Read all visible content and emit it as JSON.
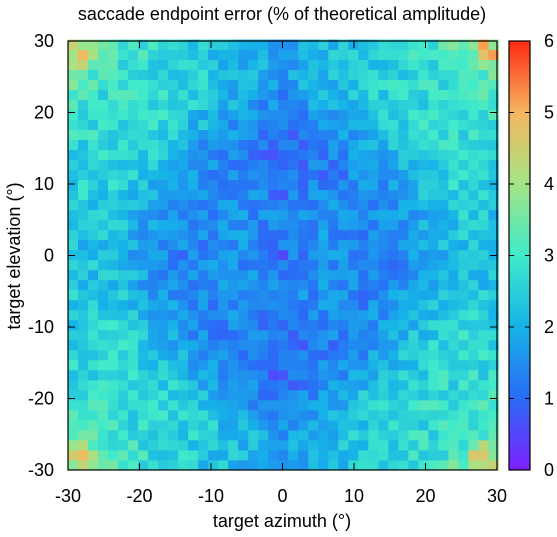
{
  "chart_data": {
    "type": "heatmap",
    "title": "saccade endpoint error (% of theoretical amplitude)",
    "xlabel": "target azimuth (°)",
    "ylabel": "target elevation (°)",
    "xlim": [
      -30,
      30
    ],
    "ylim": [
      -30,
      30
    ],
    "xticks": [
      "-30",
      "-20",
      "-10",
      "0",
      "10",
      "20",
      "30"
    ],
    "yticks": [
      "-30",
      "-20",
      "-10",
      "0",
      "10",
      "20",
      "30"
    ],
    "xtick_values": [
      -30,
      -20,
      -10,
      0,
      10,
      20,
      30
    ],
    "ytick_values": [
      -30,
      -20,
      -10,
      0,
      10,
      20,
      30
    ],
    "grid_resolution_deg": 1.4,
    "color_range": [
      0,
      6
    ],
    "colorbar_ticks": [
      "0",
      "1",
      "2",
      "3",
      "4",
      "5",
      "6"
    ],
    "colorbar_tick_values": [
      0,
      1,
      2,
      3,
      4,
      5,
      6
    ],
    "colormap_stops": [
      "#7f1fff",
      "#2a6cf6",
      "#16b2e8",
      "#40eaca",
      "#a3e585",
      "#f6b65e",
      "#ff2a14"
    ],
    "value_model": {
      "description": "error grows with eccentricity; minimum (~1%) along vertical midline near center, ~2-2.5% mid-field, up to ~4-4.5% at corners",
      "center_value": 1.0,
      "corner_value": 4.2
    },
    "grid": true,
    "legend": "colorbar-right"
  }
}
